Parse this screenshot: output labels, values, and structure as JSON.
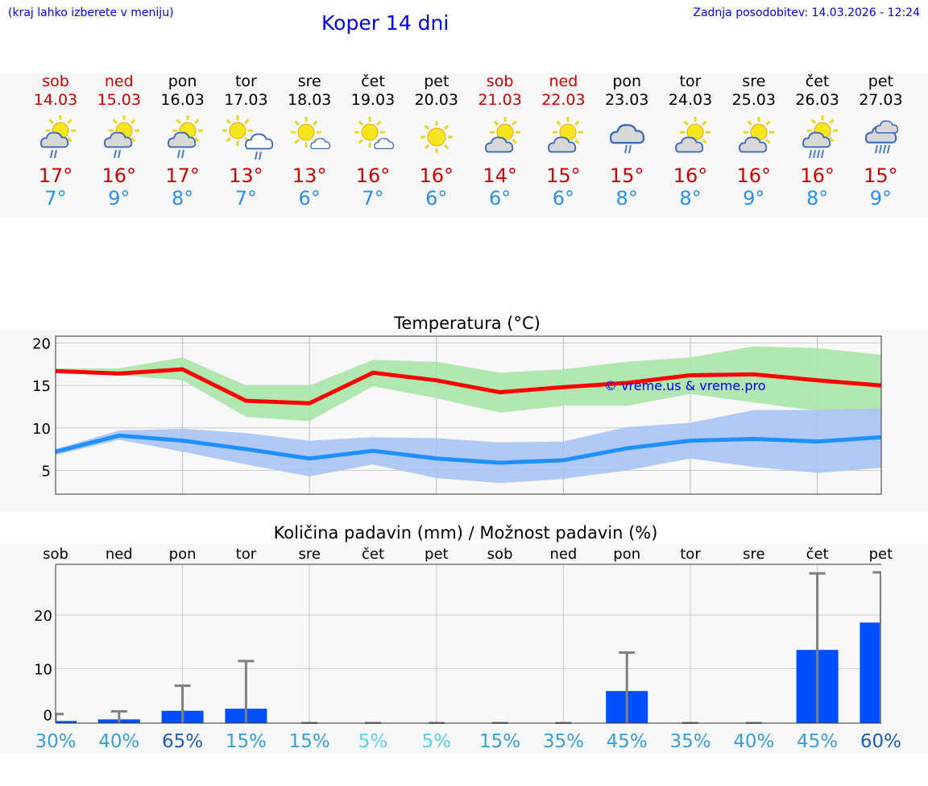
{
  "header": {
    "hint": "(kraj lahko izberete v meniju)",
    "title": "Koper 14 dni",
    "updated": "Zadnja posodobitev: 14.03.2026 - 12:24"
  },
  "days": [
    {
      "name": "sob",
      "date": "14.03",
      "weekend": true,
      "icon": "sun-cloud-rain",
      "max": "17°",
      "min": "7°"
    },
    {
      "name": "ned",
      "date": "15.03",
      "weekend": true,
      "icon": "sun-cloud-rain",
      "max": "16°",
      "min": "9°"
    },
    {
      "name": "pon",
      "date": "16.03",
      "weekend": false,
      "icon": "sun-cloud-rain",
      "max": "17°",
      "min": "8°"
    },
    {
      "name": "tor",
      "date": "17.03",
      "weekend": false,
      "icon": "sun-whitecloud-rain",
      "max": "13°",
      "min": "7°"
    },
    {
      "name": "sre",
      "date": "18.03",
      "weekend": false,
      "icon": "sun-small-cloud",
      "max": "13°",
      "min": "6°"
    },
    {
      "name": "čet",
      "date": "19.03",
      "weekend": false,
      "icon": "sun-small-cloud",
      "max": "16°",
      "min": "7°"
    },
    {
      "name": "pet",
      "date": "20.03",
      "weekend": false,
      "icon": "sun",
      "max": "16°",
      "min": "6°"
    },
    {
      "name": "sob",
      "date": "21.03",
      "weekend": true,
      "icon": "sun-cloud",
      "max": "14°",
      "min": "6°"
    },
    {
      "name": "ned",
      "date": "22.03",
      "weekend": true,
      "icon": "sun-cloud",
      "max": "15°",
      "min": "6°"
    },
    {
      "name": "pon",
      "date": "23.03",
      "weekend": false,
      "icon": "cloud-rain",
      "max": "15°",
      "min": "8°"
    },
    {
      "name": "tor",
      "date": "24.03",
      "weekend": false,
      "icon": "sun-cloud",
      "max": "16°",
      "min": "8°"
    },
    {
      "name": "sre",
      "date": "25.03",
      "weekend": false,
      "icon": "sun-cloud",
      "max": "16°",
      "min": "9°"
    },
    {
      "name": "čet",
      "date": "26.03",
      "weekend": false,
      "icon": "sun-cloud-heavy-rain",
      "max": "16°",
      "min": "8°"
    },
    {
      "name": "pet",
      "date": "27.03",
      "weekend": false,
      "icon": "cloud-heavy-rain",
      "max": "15°",
      "min": "9°"
    }
  ],
  "colors": {
    "weekend": "#cc0000",
    "max": "#ff0000",
    "min": "#1e90ff",
    "max_band": "#a8e6a8",
    "min_band": "#a8c4f4",
    "bar": "#0050ff"
  },
  "chart_data": [
    {
      "type": "line",
      "title": "Temperatura (°C)",
      "watermark": "© vreme.us & vreme.pro",
      "ylim": [
        2.2,
        20.8
      ],
      "yticks": [
        5,
        10,
        15,
        20
      ],
      "series": [
        {
          "name": "max",
          "values": [
            16.7,
            16.4,
            16.9,
            13.2,
            12.9,
            16.5,
            15.6,
            14.2,
            14.8,
            15.3,
            16.2,
            16.3,
            15.6,
            15.0
          ],
          "band_high": [
            17.0,
            17.0,
            18.3,
            15.0,
            15.0,
            18.0,
            17.8,
            16.5,
            16.9,
            17.8,
            18.3,
            19.6,
            19.4,
            18.6
          ],
          "band_low": [
            16.5,
            16.2,
            15.6,
            11.3,
            10.8,
            14.9,
            13.5,
            11.8,
            12.6,
            12.6,
            14.0,
            13.0,
            12.0,
            11.6
          ]
        },
        {
          "name": "min",
          "values": [
            7.2,
            9.1,
            8.5,
            7.5,
            6.4,
            7.3,
            6.4,
            5.9,
            6.2,
            7.6,
            8.5,
            8.7,
            8.4,
            8.9
          ],
          "band_high": [
            7.5,
            9.7,
            9.9,
            9.4,
            8.5,
            8.9,
            8.8,
            8.3,
            8.4,
            10.1,
            10.6,
            12.1,
            12.1,
            12.3
          ],
          "band_low": [
            6.8,
            8.6,
            7.2,
            5.7,
            4.3,
            5.7,
            4.1,
            3.5,
            4.0,
            5.0,
            6.4,
            5.4,
            4.7,
            5.3
          ]
        }
      ]
    },
    {
      "type": "bar",
      "title": "Količina padavin (mm) / Možnost padavin (%)",
      "ylim": [
        -0.2,
        29.5
      ],
      "yticks": [
        0,
        10,
        20
      ],
      "categories": [
        "sob",
        "ned",
        "pon",
        "tor",
        "sre",
        "čet",
        "pet",
        "sob",
        "ned",
        "pon",
        "tor",
        "sre",
        "čet",
        "pet"
      ],
      "values": [
        0.2,
        0.5,
        2.1,
        2.5,
        0,
        0,
        0,
        0,
        0,
        5.8,
        0,
        0,
        13.5,
        18.6
      ],
      "error_high": [
        1.5,
        2.0,
        6.8,
        11.4,
        0,
        0,
        0,
        0,
        0,
        13.0,
        0,
        0,
        27.8,
        28.0
      ],
      "probability": [
        "30%",
        "40%",
        "65%",
        "15%",
        "15%",
        "5%",
        "5%",
        "15%",
        "35%",
        "45%",
        "35%",
        "40%",
        "45%",
        "60%"
      ],
      "probability_colors": [
        "#3a9fd8",
        "#3a9fd8",
        "#1a5fb0",
        "#3a9fd8",
        "#3a9fd8",
        "#5bd0e8",
        "#5bd0e8",
        "#3a9fd8",
        "#3a9fd8",
        "#3a9fd8",
        "#3a9fd8",
        "#3a9fd8",
        "#3a9fd8",
        "#1a5fb0"
      ]
    }
  ]
}
